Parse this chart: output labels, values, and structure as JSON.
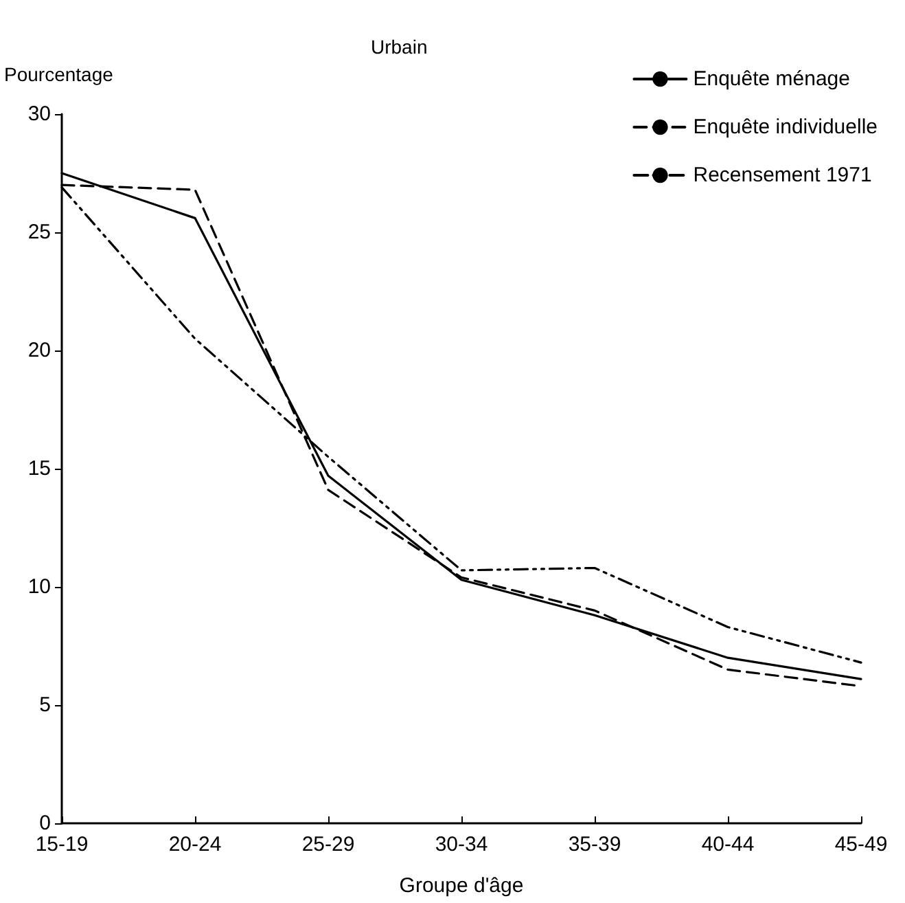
{
  "chart_data": {
    "type": "line",
    "title": "Urbain",
    "xlabel": "Groupe d'âge",
    "ylabel": "Pourcentage",
    "categories": [
      "15-19",
      "20-24",
      "25-29",
      "30-34",
      "35-39",
      "40-44",
      "45-49"
    ],
    "series": [
      {
        "name": "Enquête ménage",
        "color": "#000000",
        "line_style": "solid",
        "values": [
          27.5,
          25.6,
          14.7,
          10.3,
          8.8,
          7.0,
          6.1
        ]
      },
      {
        "name": "Enquête individuelle",
        "color": "#000000",
        "line_style": "dashed",
        "values": [
          27.0,
          26.8,
          14.1,
          10.4,
          9.0,
          6.5,
          5.8
        ]
      },
      {
        "name": "Recensement 1971",
        "color": "#000000",
        "line_style": "dotted",
        "values": [
          26.9,
          20.5,
          15.5,
          10.7,
          10.8,
          8.3,
          6.8
        ]
      }
    ],
    "ylim": [
      0,
      30
    ],
    "yticks": [
      0,
      5,
      10,
      15,
      20,
      25,
      30
    ],
    "grid": false,
    "legend": "top right",
    "marker": "none"
  }
}
